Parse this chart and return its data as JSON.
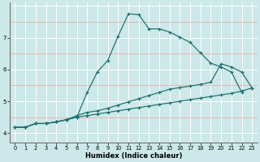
{
  "xlabel": "Humidex (Indice chaleur)",
  "xlim": [
    -0.5,
    23.5
  ],
  "ylim": [
    3.7,
    8.1
  ],
  "yticks": [
    4,
    5,
    6,
    7
  ],
  "xticks": [
    0,
    1,
    2,
    3,
    4,
    5,
    6,
    7,
    8,
    9,
    10,
    11,
    12,
    13,
    14,
    15,
    16,
    17,
    18,
    19,
    20,
    21,
    22,
    23
  ],
  "bg_color": "#cce8e8",
  "line_color": "#1a6e6e",
  "grid_white_color": "#ffffff",
  "grid_pink_color": "#f0a0a0",
  "line1_x": [
    0,
    1,
    2,
    3,
    4,
    5,
    6,
    7,
    8,
    9,
    10,
    11,
    12,
    13,
    14,
    15,
    16,
    17,
    18,
    19,
    20,
    21,
    22
  ],
  "line1_y": [
    4.18,
    4.18,
    4.3,
    4.3,
    4.35,
    4.42,
    4.5,
    5.28,
    5.93,
    6.28,
    7.05,
    7.75,
    7.73,
    7.28,
    7.28,
    7.18,
    7.02,
    6.85,
    6.52,
    6.2,
    6.08,
    5.92,
    5.28
  ],
  "line2_x": [
    0,
    1,
    2,
    3,
    4,
    5,
    6,
    7,
    8,
    9,
    10,
    11,
    12,
    13,
    14,
    15,
    16,
    17,
    18,
    19,
    20,
    21,
    22,
    23
  ],
  "line2_y": [
    4.18,
    4.18,
    4.3,
    4.3,
    4.35,
    4.42,
    4.55,
    4.65,
    4.7,
    4.78,
    4.88,
    4.98,
    5.08,
    5.18,
    5.28,
    5.38,
    5.43,
    5.48,
    5.53,
    5.6,
    6.18,
    6.08,
    5.92,
    5.42
  ],
  "line3_x": [
    0,
    1,
    2,
    3,
    4,
    5,
    6,
    7,
    8,
    9,
    10,
    11,
    12,
    13,
    14,
    15,
    16,
    17,
    18,
    19,
    20,
    21,
    22,
    23
  ],
  "line3_y": [
    4.18,
    4.18,
    4.3,
    4.3,
    4.35,
    4.42,
    4.5,
    4.55,
    4.6,
    4.65,
    4.7,
    4.75,
    4.8,
    4.85,
    4.9,
    4.95,
    5.0,
    5.05,
    5.1,
    5.15,
    5.2,
    5.25,
    5.32,
    5.42
  ]
}
